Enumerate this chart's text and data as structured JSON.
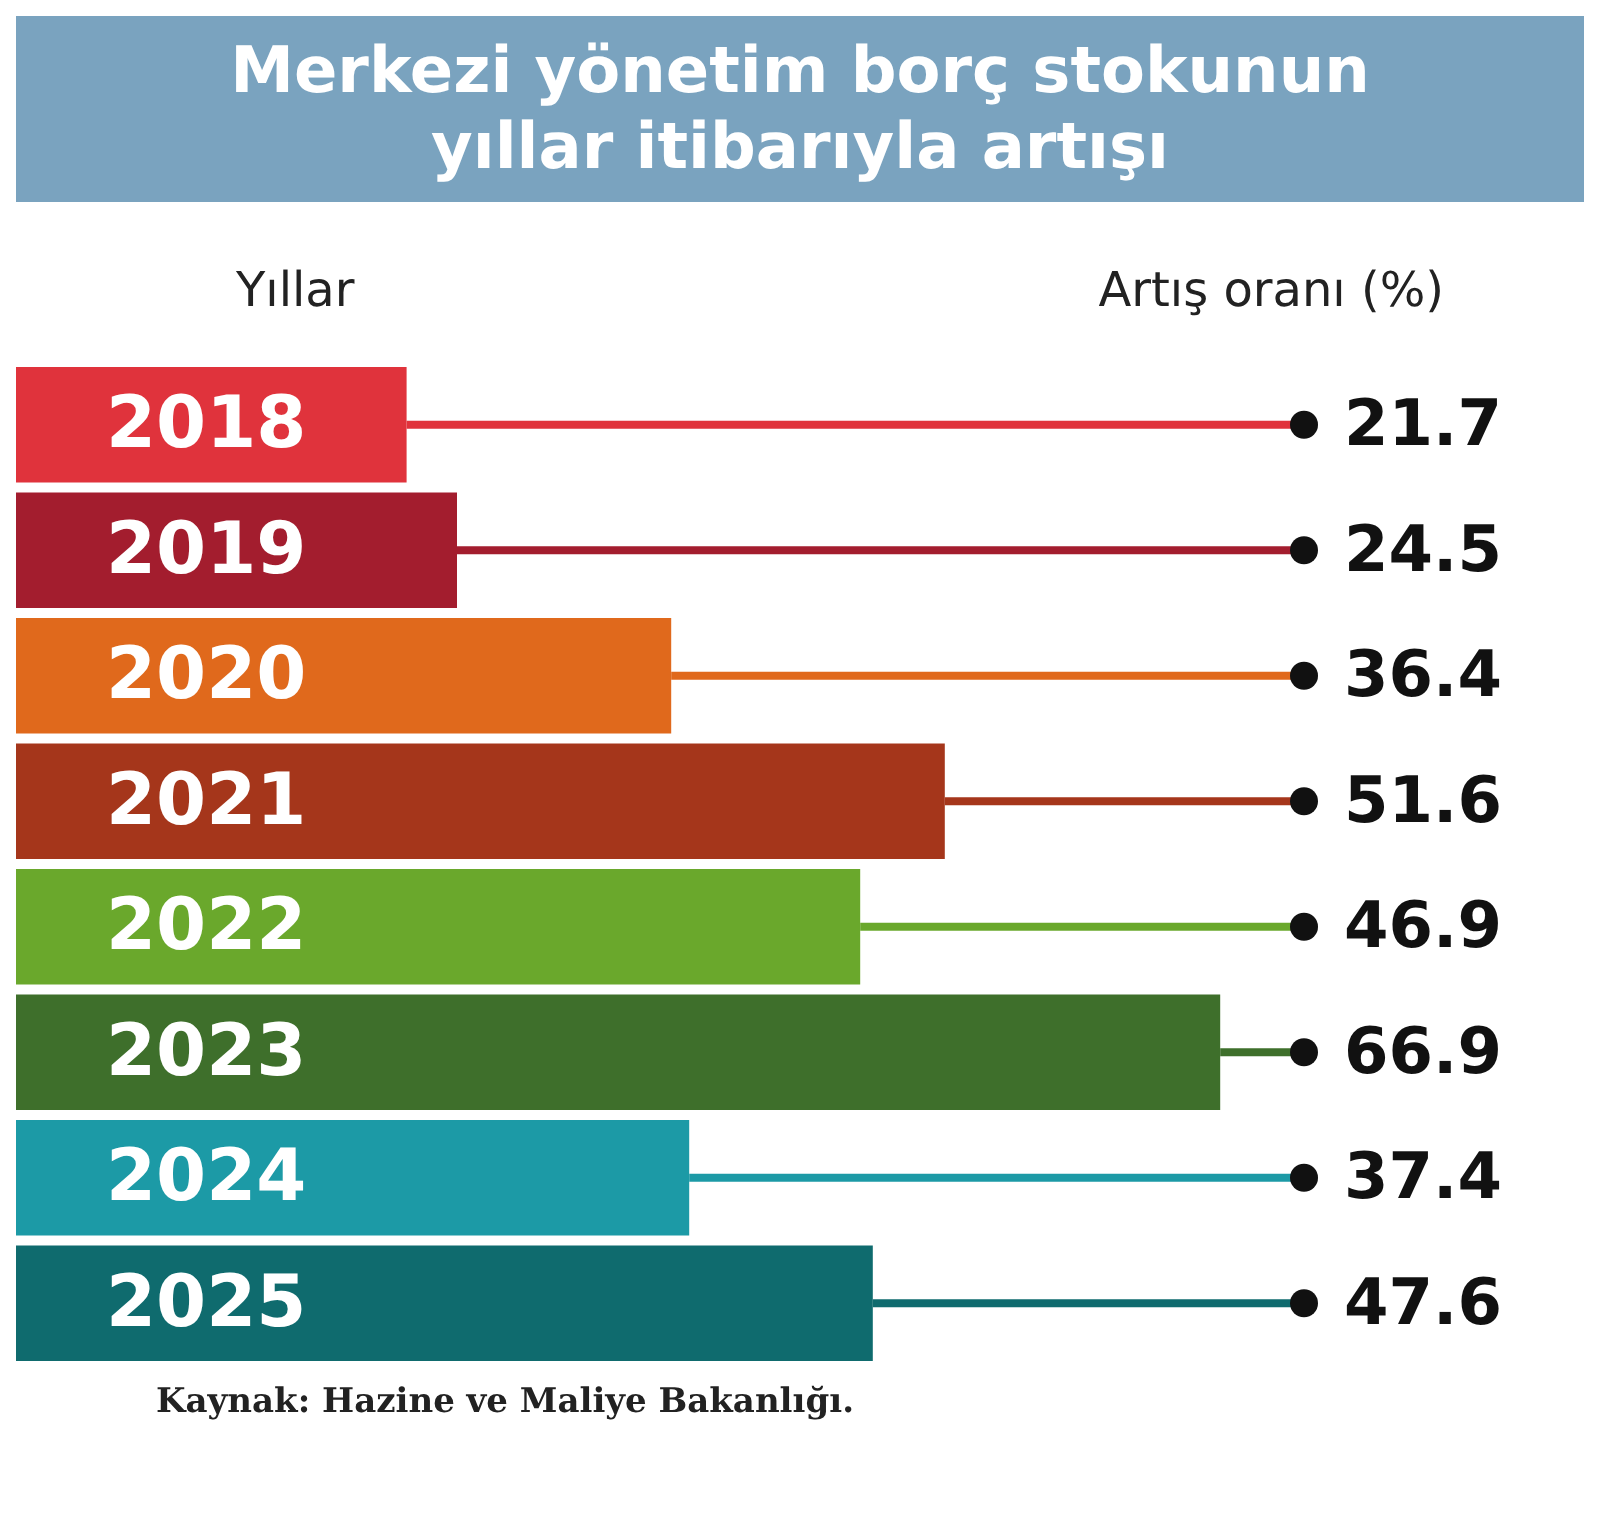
{
  "chart_data": {
    "type": "bar",
    "orientation": "horizontal",
    "title": "Merkezi yönetim borç stokunun yıllar itibarıyla artışı",
    "ylabel": "Yıllar",
    "xlabel": "Artış oranı (%)",
    "categories": [
      "2018",
      "2019",
      "2020",
      "2021",
      "2022",
      "2023",
      "2024",
      "2025"
    ],
    "values": [
      21.7,
      24.5,
      36.4,
      51.6,
      46.9,
      66.9,
      37.4,
      47.6
    ],
    "colors": [
      "#e0333c",
      "#a31d2e",
      "#e0691c",
      "#a5361b",
      "#6aa82c",
      "#3e6f2b",
      "#1c9aa6",
      "#0f6b6e"
    ],
    "data_labels": true,
    "annotations": [
      "Kaynak: Hazine ve Maliye Bakanlığı."
    ]
  }
}
